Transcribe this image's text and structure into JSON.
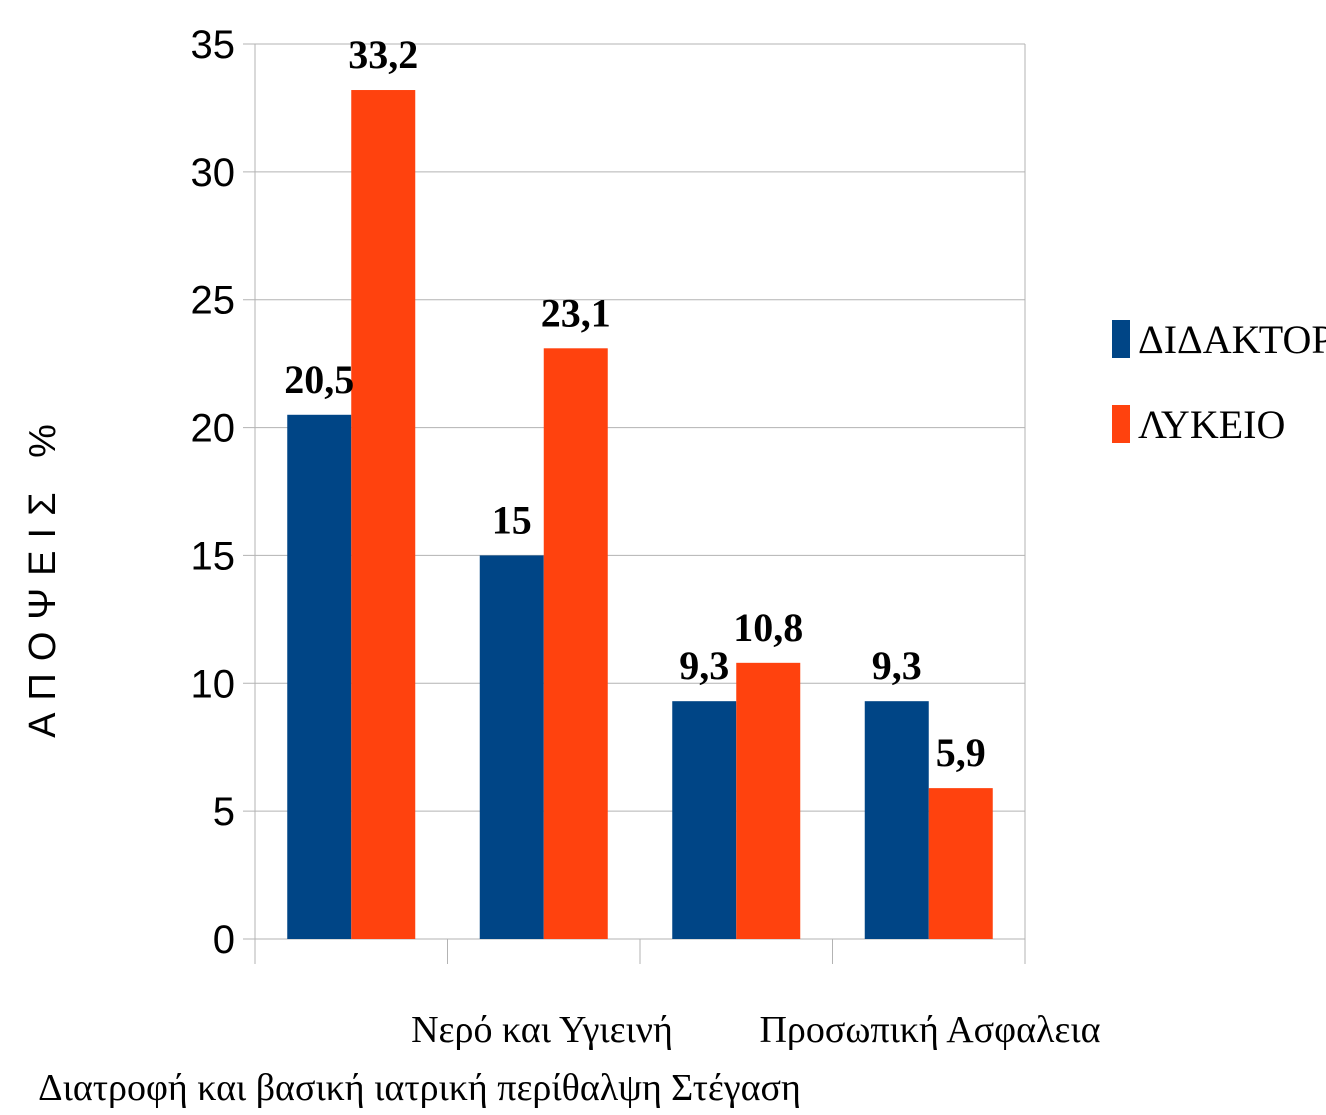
{
  "chart_data": {
    "type": "bar",
    "title": "",
    "xlabel": "",
    "ylabel": "ΑΠΟΨΕΙΣ %",
    "ylim": [
      0,
      35
    ],
    "yticks": [
      0,
      5,
      10,
      15,
      20,
      25,
      30,
      35
    ],
    "grid": true,
    "legend_position": "right",
    "categories": [
      "Διατροφή και βασική ιατρική περίθαλψη",
      "Νερό και Υγιεινή",
      "Στέγαση",
      "Προσωπική Ασφαλεια"
    ],
    "series": [
      {
        "name": "ΔΙΔΑΚΤΟΡΙΚΟ",
        "color": "#004586",
        "values": [
          20.5,
          15,
          9.3,
          9.3
        ],
        "labels": [
          "20,5",
          "15",
          "9,3",
          "9,3"
        ]
      },
      {
        "name": "ΛΥΚΕΙΟ",
        "color": "#ff420e",
        "values": [
          33.2,
          23.1,
          10.8,
          5.9
        ],
        "labels": [
          "33,2",
          "23,1",
          "10,8",
          "5,9"
        ]
      }
    ]
  }
}
